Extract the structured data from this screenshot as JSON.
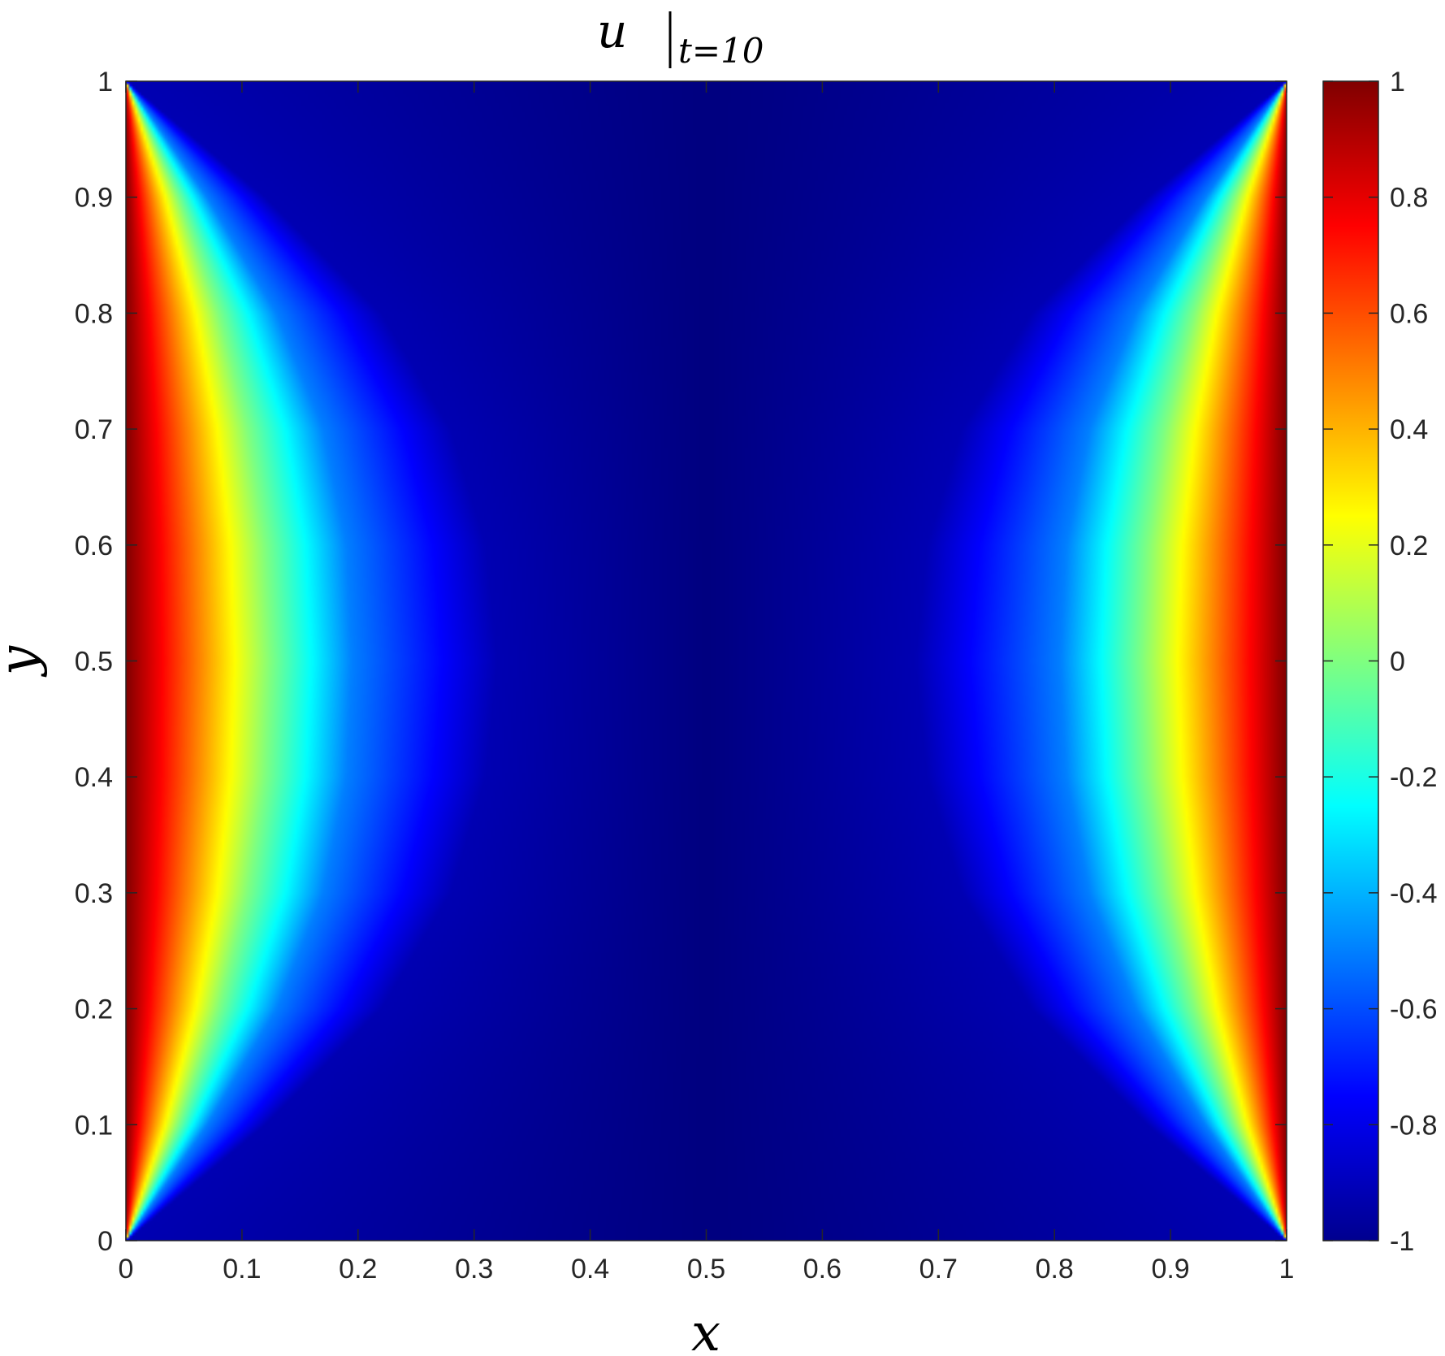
{
  "chart_data": {
    "type": "heatmap",
    "title": {
      "main": "u",
      "subscript": "t=10"
    },
    "xlabel": "x",
    "ylabel": "y",
    "xlim": [
      0,
      1
    ],
    "ylim": [
      0,
      1
    ],
    "xticks": [
      "0",
      "0.1",
      "0.2",
      "0.3",
      "0.4",
      "0.5",
      "0.6",
      "0.7",
      "0.8",
      "0.9",
      "1"
    ],
    "yticks": [
      "0",
      "0.1",
      "0.2",
      "0.3",
      "0.4",
      "0.5",
      "0.6",
      "0.7",
      "0.8",
      "0.9",
      "1"
    ],
    "colorbar": {
      "colormap": "jet",
      "clim": [
        -1,
        1
      ],
      "ticks": [
        "-1",
        "-0.8",
        "-0.6",
        "-0.4",
        "-0.2",
        "0",
        "0.2",
        "0.4",
        "0.6",
        "0.8",
        "1"
      ]
    },
    "field": {
      "y_samples": [
        0,
        0.1,
        0.2,
        0.3,
        0.4,
        0.5,
        0.6,
        0.7,
        0.8,
        0.9,
        1
      ],
      "x_at_value_0": [
        0,
        0.045,
        0.08,
        0.105,
        0.12,
        0.125,
        0.12,
        0.105,
        0.08,
        0.045,
        0
      ],
      "x_at_value_-0.5": [
        0,
        0.07,
        0.13,
        0.17,
        0.19,
        0.195,
        0.19,
        0.17,
        0.13,
        0.07,
        0
      ],
      "x_at_value_-0.9": [
        0,
        0.12,
        0.22,
        0.28,
        0.31,
        0.32,
        0.31,
        0.28,
        0.22,
        0.12,
        0
      ],
      "value_at_boundary_x0_and_x1": 1,
      "value_at_boundary_y0_and_y1": -1,
      "min_value_center": -1,
      "symmetry": "symmetric about x=0.5 and y=0.5"
    },
    "grid": false
  }
}
